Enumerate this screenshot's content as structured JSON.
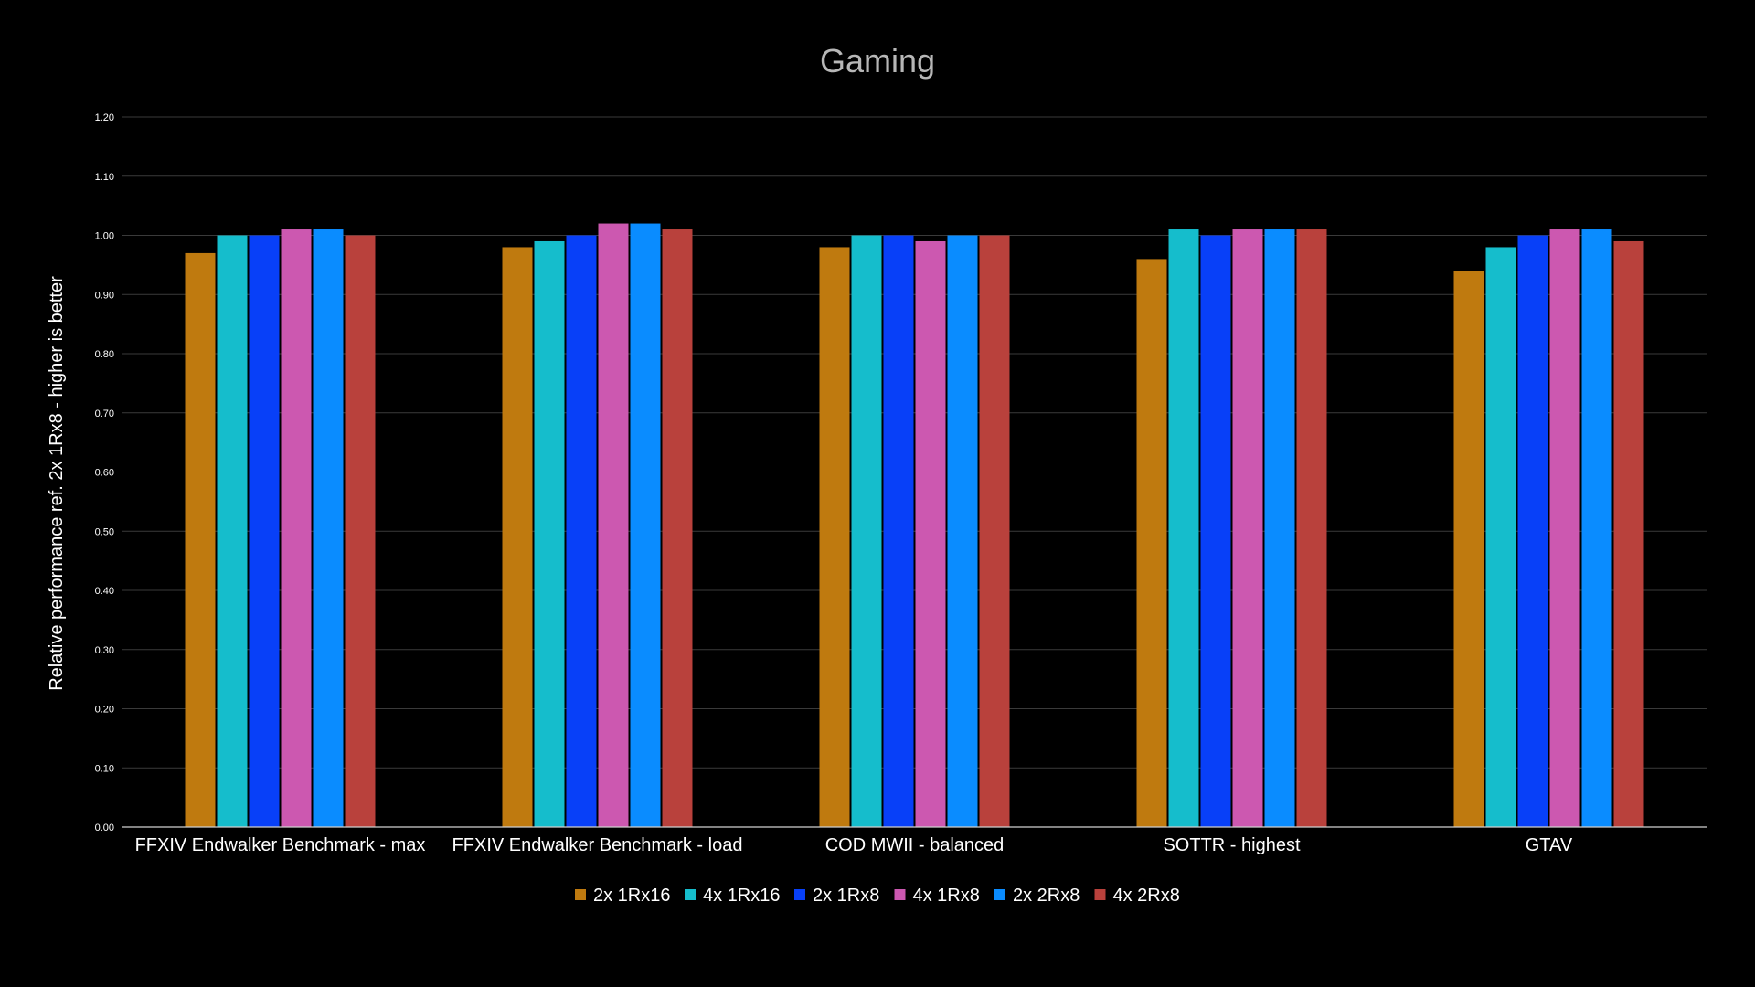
{
  "chart_data": {
    "type": "bar",
    "title": "Gaming",
    "xlabel": "",
    "ylabel": "Relative performance ref. 2x 1Rx8 - higher is better",
    "ylim": [
      0,
      1.2
    ],
    "yticks": [
      "0.00",
      "0.10",
      "0.20",
      "0.30",
      "0.40",
      "0.50",
      "0.60",
      "0.70",
      "0.80",
      "0.90",
      "1.00",
      "1.10",
      "1.20"
    ],
    "grid": true,
    "legend_position": "bottom",
    "categories": [
      "FFXIV Endwalker Benchmark - max",
      "FFXIV Endwalker Benchmark - load",
      "COD MWII - balanced",
      "SOTTR - highest",
      "GTAV"
    ],
    "series": [
      {
        "name": "2x 1Rx16",
        "color": "#bf7a0f",
        "values": [
          0.97,
          0.98,
          0.98,
          0.96,
          0.94
        ]
      },
      {
        "name": "4x 1Rx16",
        "color": "#15bdcc",
        "values": [
          1.0,
          0.99,
          1.0,
          1.01,
          0.98
        ]
      },
      {
        "name": "2x 1Rx8",
        "color": "#0840f8",
        "values": [
          1.0,
          1.0,
          1.0,
          1.0,
          1.0
        ]
      },
      {
        "name": "4x 1Rx8",
        "color": "#cc58b0",
        "values": [
          1.01,
          1.02,
          0.99,
          1.01,
          1.01
        ]
      },
      {
        "name": "2x 2Rx8",
        "color": "#0a8cff",
        "values": [
          1.01,
          1.02,
          1.0,
          1.01,
          1.01
        ]
      },
      {
        "name": "4x 2Rx8",
        "color": "#b9413c",
        "values": [
          1.0,
          1.01,
          1.0,
          1.01,
          0.99
        ]
      }
    ]
  }
}
